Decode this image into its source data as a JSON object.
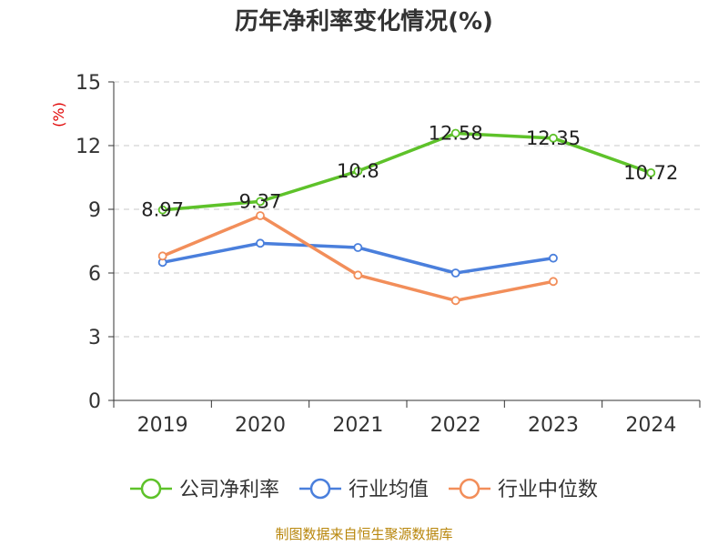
{
  "chart_data": {
    "type": "line",
    "title": "历年净利率变化情况(%)",
    "xlabel": "",
    "ylabel": "(%)",
    "categories": [
      "2019",
      "2020",
      "2021",
      "2022",
      "2023",
      "2024"
    ],
    "ylim": [
      0,
      15
    ],
    "yticks": [
      "0",
      "3",
      "6",
      "9",
      "12",
      "15"
    ],
    "grid": true,
    "legend_position": "bottom",
    "series": [
      {
        "name": "公司净利率",
        "color": "#5ec22a",
        "values": [
          8.97,
          9.37,
          10.8,
          12.58,
          12.35,
          10.72
        ],
        "labels": [
          "8.97",
          "9.37",
          "10.8",
          "12.58",
          "12.35",
          "10.72"
        ]
      },
      {
        "name": "行业均值",
        "color": "#4a7fdc",
        "values": [
          6.5,
          7.4,
          7.2,
          6.0,
          6.7,
          null
        ],
        "labels": []
      },
      {
        "name": "行业中位数",
        "color": "#f28e5a",
        "values": [
          6.8,
          8.7,
          5.9,
          4.7,
          5.6,
          null
        ],
        "labels": []
      }
    ]
  },
  "source_note": "制图数据来自恒生聚源数据库"
}
